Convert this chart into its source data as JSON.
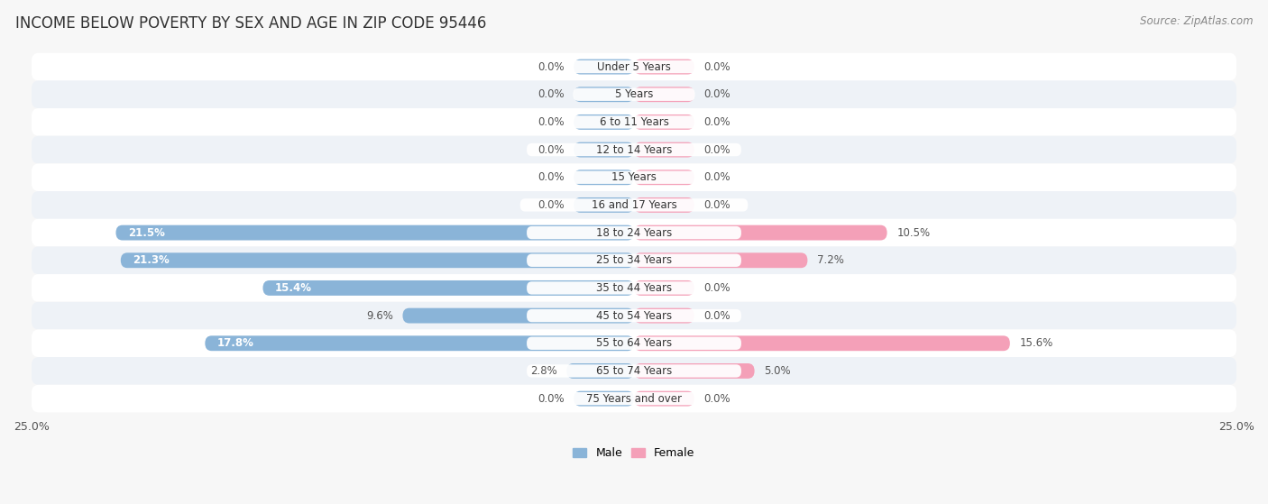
{
  "title": "INCOME BELOW POVERTY BY SEX AND AGE IN ZIP CODE 95446",
  "source": "Source: ZipAtlas.com",
  "categories": [
    "Under 5 Years",
    "5 Years",
    "6 to 11 Years",
    "12 to 14 Years",
    "15 Years",
    "16 and 17 Years",
    "18 to 24 Years",
    "25 to 34 Years",
    "35 to 44 Years",
    "45 to 54 Years",
    "55 to 64 Years",
    "65 to 74 Years",
    "75 Years and over"
  ],
  "male_values": [
    0.0,
    0.0,
    0.0,
    0.0,
    0.0,
    0.0,
    21.5,
    21.3,
    15.4,
    9.6,
    17.8,
    2.8,
    0.0
  ],
  "female_values": [
    0.0,
    0.0,
    0.0,
    0.0,
    0.0,
    0.0,
    10.5,
    7.2,
    0.0,
    0.0,
    15.6,
    5.0,
    0.0
  ],
  "male_color": "#8ab4d8",
  "female_color": "#f4a0b8",
  "xlim": 25.0,
  "background_color": "#f7f7f7",
  "row_bg_light": "#ffffff",
  "row_bg_alt": "#eef2f7",
  "title_fontsize": 12,
  "label_fontsize": 8.5,
  "cat_fontsize": 8.5,
  "tick_fontsize": 9,
  "source_fontsize": 8.5,
  "bar_height": 0.55,
  "stub_value": 2.5
}
